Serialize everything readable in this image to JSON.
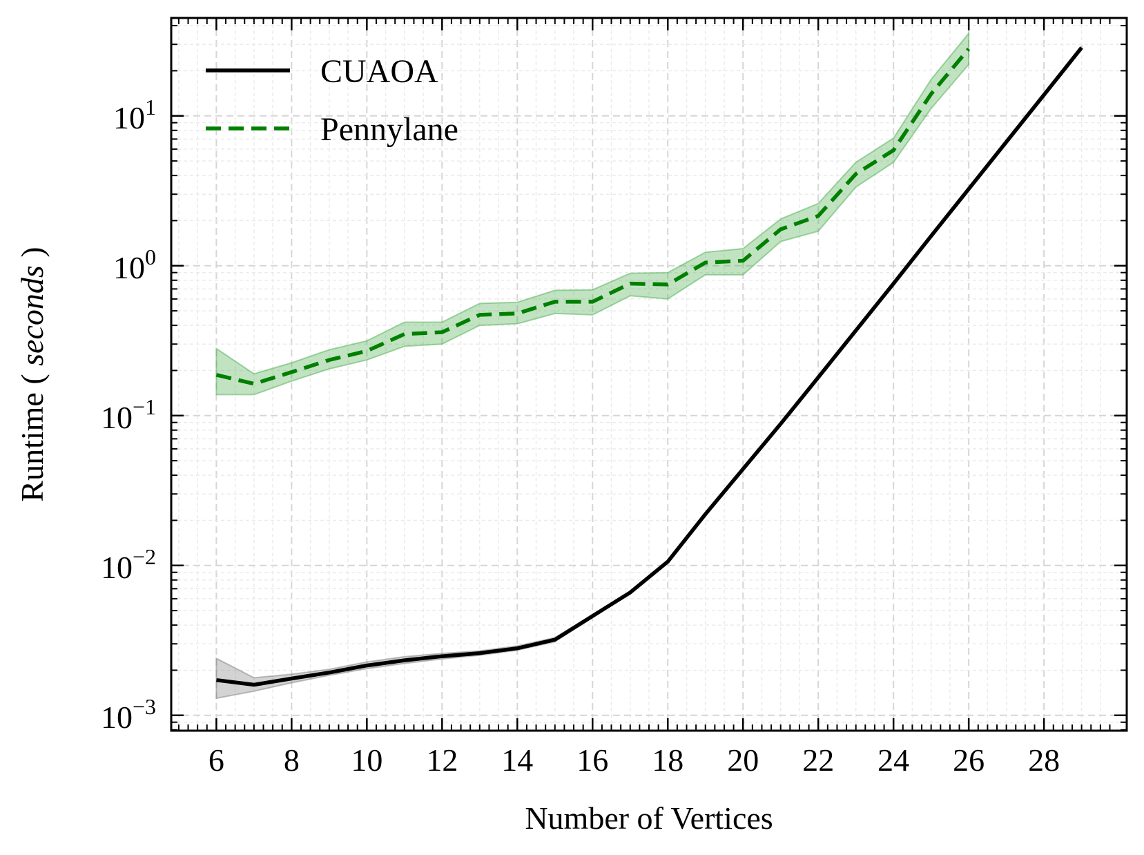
{
  "chart_data": {
    "type": "line",
    "title": "",
    "xlabel": "Number of Vertices",
    "ylabel_prefix": "Runtime ( ",
    "ylabel_unit": "seconds",
    "ylabel_suffix": " )",
    "yscale": "log",
    "xlim": [
      4.8,
      30.2
    ],
    "ylim": [
      0.00079,
      45
    ],
    "x_ticks": [
      6,
      8,
      10,
      12,
      14,
      16,
      18,
      20,
      22,
      24,
      26,
      28
    ],
    "y_ticks": [
      {
        "value": 0.001,
        "base": "10",
        "exp": "−3"
      },
      {
        "value": 0.01,
        "base": "10",
        "exp": "−2"
      },
      {
        "value": 0.1,
        "base": "10",
        "exp": "−1"
      },
      {
        "value": 1,
        "base": "10",
        "exp": "0"
      },
      {
        "value": 10,
        "base": "10",
        "exp": "1"
      }
    ],
    "grid": true,
    "legend_position": "top-left",
    "series": [
      {
        "name": "CUAOA",
        "color": "#000000",
        "band_color": "#808080",
        "style": "solid",
        "x": [
          6,
          7,
          8,
          9,
          10,
          11,
          12,
          13,
          14,
          15,
          16,
          17,
          18,
          19,
          20,
          21,
          22,
          23,
          24,
          25,
          26,
          27,
          28,
          29
        ],
        "values": [
          0.00172,
          0.0016,
          0.00176,
          0.00193,
          0.00215,
          0.00233,
          0.00248,
          0.0026,
          0.0028,
          0.0032,
          0.0046,
          0.0066,
          0.0106,
          0.022,
          0.044,
          0.088,
          0.18,
          0.37,
          0.76,
          1.58,
          3.25,
          6.7,
          13.8,
          28.5
        ],
        "lower": [
          0.0013,
          0.00145,
          0.00165,
          0.00185,
          0.00205,
          0.00222,
          0.00238,
          0.00252,
          0.00272,
          0.0031,
          0.0045,
          0.0065,
          0.0104,
          0.0217,
          0.0435,
          0.087,
          0.178,
          0.366,
          0.752,
          1.56,
          3.21,
          6.62,
          13.6,
          28.1
        ],
        "upper": [
          0.0024,
          0.00178,
          0.00188,
          0.00203,
          0.00227,
          0.00246,
          0.00259,
          0.00269,
          0.0029,
          0.0033,
          0.0047,
          0.0067,
          0.0108,
          0.0223,
          0.0445,
          0.089,
          0.182,
          0.374,
          0.768,
          1.6,
          3.29,
          6.78,
          14.0,
          28.9
        ]
      },
      {
        "name": "Pennylane",
        "color": "#007f00",
        "band_color": "#4caf50",
        "style": "dashed",
        "x": [
          6,
          7,
          8,
          9,
          10,
          11,
          12,
          13,
          14,
          15,
          16,
          17,
          18,
          19,
          20,
          21,
          22,
          23,
          24,
          25,
          26
        ],
        "values": [
          0.187,
          0.163,
          0.195,
          0.235,
          0.27,
          0.35,
          0.36,
          0.47,
          0.48,
          0.575,
          0.575,
          0.76,
          0.75,
          1.05,
          1.08,
          1.75,
          2.15,
          4.1,
          5.9,
          14.0,
          28.0
        ],
        "lower": [
          0.138,
          0.138,
          0.17,
          0.205,
          0.235,
          0.29,
          0.3,
          0.4,
          0.41,
          0.48,
          0.47,
          0.63,
          0.6,
          0.87,
          0.87,
          1.45,
          1.7,
          3.35,
          4.9,
          11.2,
          22.0
        ],
        "upper": [
          0.28,
          0.19,
          0.225,
          0.275,
          0.315,
          0.42,
          0.42,
          0.56,
          0.57,
          0.685,
          0.69,
          0.89,
          0.9,
          1.23,
          1.3,
          2.05,
          2.6,
          4.9,
          7.1,
          17.5,
          35.5
        ]
      }
    ]
  }
}
